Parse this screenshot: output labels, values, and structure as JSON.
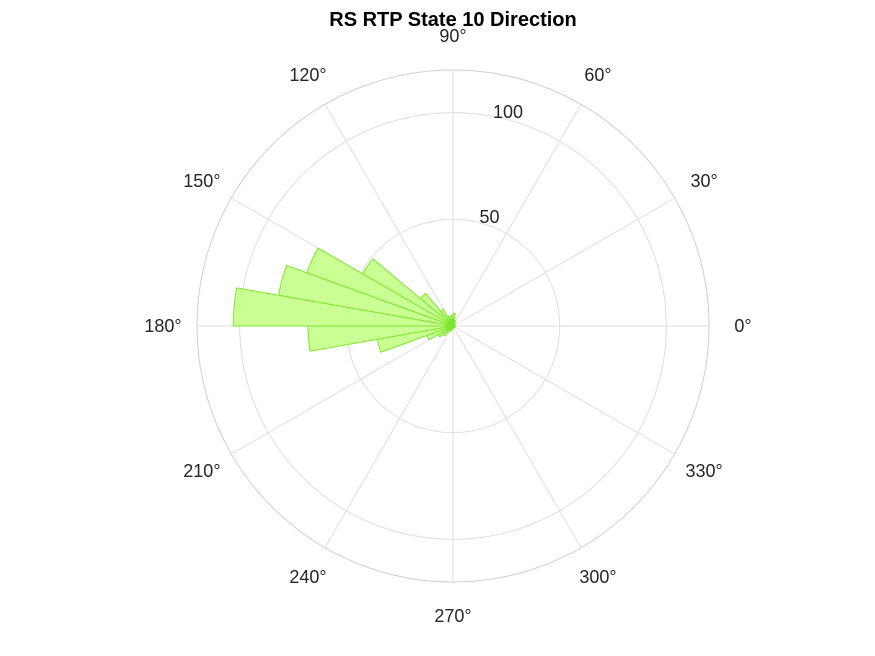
{
  "chart_data": {
    "type": "polar_histogram",
    "title": "RS  RTP State 10 Direction",
    "rlim": [
      0,
      120
    ],
    "r_ticks": [
      0,
      50,
      100
    ],
    "r_tick_labels": [
      "0",
      "50",
      "100"
    ],
    "theta_ticks_deg": [
      0,
      30,
      60,
      90,
      120,
      150,
      180,
      210,
      240,
      270,
      300,
      330
    ],
    "theta_tick_labels": [
      "0°",
      "30°",
      "60°",
      "90°",
      "120°",
      "150°",
      "180°",
      "210°",
      "240°",
      "270°",
      "300°",
      "330°"
    ],
    "grid": true,
    "bin_width_deg": 10,
    "bins": [
      {
        "start": 0,
        "end": 10,
        "value": 1
      },
      {
        "start": 10,
        "end": 20,
        "value": 1
      },
      {
        "start": 20,
        "end": 30,
        "value": 1
      },
      {
        "start": 40,
        "end": 50,
        "value": 1
      },
      {
        "start": 60,
        "end": 70,
        "value": 2
      },
      {
        "start": 70,
        "end": 80,
        "value": 3
      },
      {
        "start": 80,
        "end": 90,
        "value": 6
      },
      {
        "start": 90,
        "end": 100,
        "value": 5
      },
      {
        "start": 100,
        "end": 110,
        "value": 4
      },
      {
        "start": 110,
        "end": 120,
        "value": 5
      },
      {
        "start": 120,
        "end": 130,
        "value": 9
      },
      {
        "start": 130,
        "end": 140,
        "value": 20
      },
      {
        "start": 140,
        "end": 150,
        "value": 49
      },
      {
        "start": 150,
        "end": 160,
        "value": 73
      },
      {
        "start": 160,
        "end": 170,
        "value": 83
      },
      {
        "start": 170,
        "end": 180,
        "value": 103
      },
      {
        "start": 180,
        "end": 190,
        "value": 68
      },
      {
        "start": 190,
        "end": 200,
        "value": 36
      },
      {
        "start": 200,
        "end": 210,
        "value": 13
      },
      {
        "start": 210,
        "end": 220,
        "value": 8
      },
      {
        "start": 220,
        "end": 230,
        "value": 6
      },
      {
        "start": 230,
        "end": 240,
        "value": 3
      },
      {
        "start": 240,
        "end": 250,
        "value": 2
      },
      {
        "start": 250,
        "end": 260,
        "value": 2
      },
      {
        "start": 260,
        "end": 270,
        "value": 1
      },
      {
        "start": 270,
        "end": 280,
        "value": 1
      },
      {
        "start": 290,
        "end": 300,
        "value": 1
      },
      {
        "start": 300,
        "end": 310,
        "value": 1
      },
      {
        "start": 320,
        "end": 330,
        "value": 1
      },
      {
        "start": 340,
        "end": 350,
        "value": 1
      },
      {
        "start": 350,
        "end": 360,
        "value": 1
      }
    ],
    "colors": {
      "fill": "#c4ff88",
      "edge": "#7fe62e"
    }
  }
}
